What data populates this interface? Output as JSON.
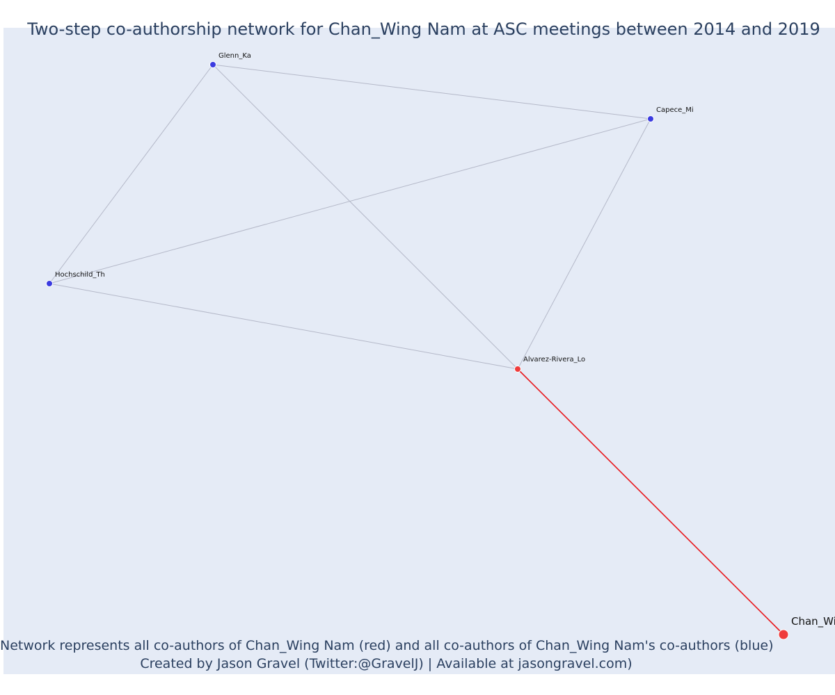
{
  "title": "Two-step co-authorship network for Chan_Wing Nam at ASC meetings between 2014 and 2019",
  "caption_line1": "Network represents all co-authors of Chan_Wing Nam (red) and all co-authors of Chan_Wing Nam's co-authors (blue)",
  "caption_line2": "Created by Jason Gravel (Twitter:@GravelJ) | Available at jasongravel.com)",
  "colors": {
    "focal": "#ef3b3b",
    "coauthor": "#ef3b3b",
    "second_step": "#3b3be0",
    "edge": "#b4b8c8",
    "focal_edge": "#e8161a",
    "background": "#e5ebf6"
  },
  "network": {
    "nodes": [
      {
        "id": "Chan_Wi",
        "group": "focal"
      },
      {
        "id": "Alvarez-Rivera_Lo",
        "group": "coauthor"
      },
      {
        "id": "Glenn_Ka",
        "group": "second_step"
      },
      {
        "id": "Capece_Mi",
        "group": "second_step"
      },
      {
        "id": "Hochschild_Th",
        "group": "second_step"
      }
    ],
    "edges": [
      {
        "source": "Glenn_Ka",
        "target": "Capece_Mi"
      },
      {
        "source": "Glenn_Ka",
        "target": "Hochschild_Th"
      },
      {
        "source": "Glenn_Ka",
        "target": "Alvarez-Rivera_Lo"
      },
      {
        "source": "Capece_Mi",
        "target": "Hochschild_Th"
      },
      {
        "source": "Capece_Mi",
        "target": "Alvarez-Rivera_Lo"
      },
      {
        "source": "Hochschild_Th",
        "target": "Alvarez-Rivera_Lo"
      },
      {
        "source": "Alvarez-Rivera_Lo",
        "target": "Chan_Wi",
        "focal": true
      }
    ]
  }
}
